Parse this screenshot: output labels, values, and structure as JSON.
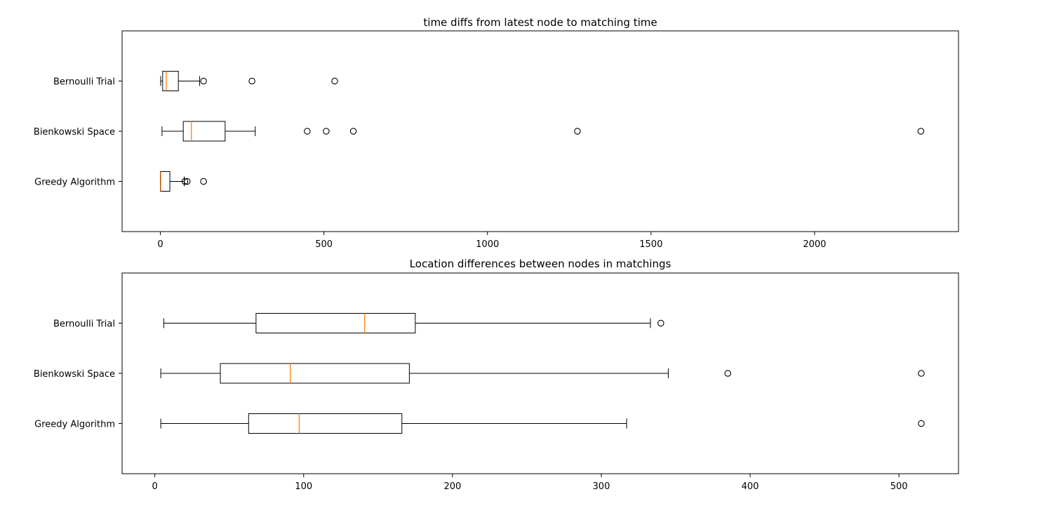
{
  "chart_data": [
    {
      "type": "boxplot",
      "title": "time diffs from latest node to matching time",
      "xlabel": "",
      "ylabel": "",
      "xlim": [
        -117,
        2440
      ],
      "xticks": [
        0,
        500,
        1000,
        1500,
        2000
      ],
      "grid": false,
      "categories": [
        "Greedy Algorithm",
        "Bienkowski Space",
        "Bernoulli Trial"
      ],
      "boxes": [
        {
          "category": "Greedy Algorithm",
          "whisker_low": 0,
          "q1": 0,
          "median": 1,
          "q3": 29,
          "whisker_high": 73,
          "outliers": [
            75,
            82,
            132
          ]
        },
        {
          "category": "Bienkowski Space",
          "whisker_low": 5,
          "q1": 70,
          "median": 95,
          "q3": 198,
          "whisker_high": 290,
          "outliers": [
            449,
            507,
            590,
            1275,
            2325
          ]
        },
        {
          "category": "Bernoulli Trial",
          "whisker_low": 1,
          "q1": 7,
          "median": 18,
          "q3": 55,
          "whisker_high": 120,
          "outliers": [
            132,
            280,
            533
          ]
        }
      ]
    },
    {
      "type": "boxplot",
      "title": "Location differences between nodes in matchings",
      "xlabel": "",
      "ylabel": "",
      "xlim": [
        -22,
        540
      ],
      "xticks": [
        0,
        100,
        200,
        300,
        400,
        500
      ],
      "grid": false,
      "categories": [
        "Greedy Algorithm",
        "Bienkowski Space",
        "Bernoulli Trial"
      ],
      "boxes": [
        {
          "category": "Greedy Algorithm",
          "whisker_low": 4,
          "q1": 63,
          "median": 97,
          "q3": 166,
          "whisker_high": 317,
          "outliers": [
            515
          ]
        },
        {
          "category": "Bienkowski Space",
          "whisker_low": 4,
          "q1": 44,
          "median": 91,
          "q3": 171,
          "whisker_high": 345,
          "outliers": [
            385,
            515
          ]
        },
        {
          "category": "Bernoulli Trial",
          "whisker_low": 6,
          "q1": 68,
          "median": 141,
          "q3": 175,
          "whisker_high": 333,
          "outliers": [
            340
          ]
        }
      ]
    }
  ],
  "colors": {
    "median": "#ff7f0e",
    "box": "#000000",
    "background": "#ffffff"
  }
}
